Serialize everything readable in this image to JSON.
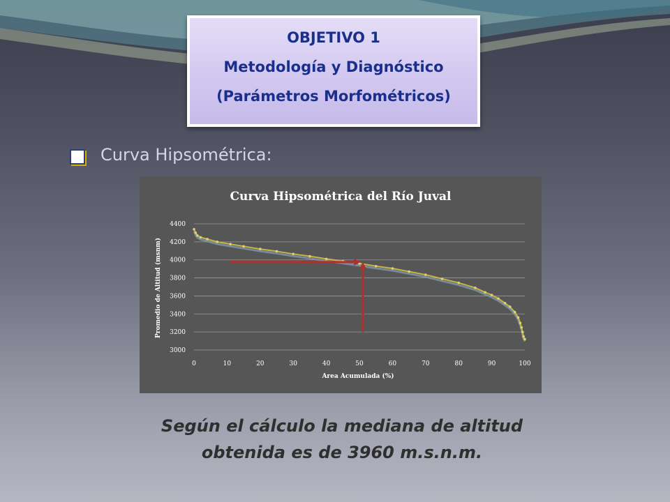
{
  "header": {
    "line1": "OBJETIVO 1",
    "line2": "Metodología y Diagnóstico",
    "line3": "(Parámetros Morfométricos)"
  },
  "bullet": {
    "text": "Curva Hipsométrica:"
  },
  "colors": {
    "title_text": "#1a2f8c",
    "curve": "#c8b44a",
    "arrow": "#b03030",
    "panel": "#565656"
  },
  "chart_data": {
    "type": "line",
    "title": "Curva Hipsométrica del Río Juval",
    "xlabel": "Area Acumulada  (%)",
    "ylabel": "Promedio  de Altitud  (msnm)",
    "xlim": [
      0,
      100
    ],
    "ylim": [
      3000,
      4400
    ],
    "xticks": [
      "0",
      "10",
      "20",
      "30",
      "40",
      "50",
      "60",
      "70",
      "80",
      "90",
      "100"
    ],
    "yticks": [
      "3000",
      "3200",
      "3400",
      "3600",
      "3800",
      "4000",
      "4200",
      "4400"
    ],
    "grid": true,
    "legend": "none",
    "series": [
      {
        "x": [
          0,
          0.5,
          1,
          2,
          4,
          7,
          11,
          15,
          20,
          25,
          30,
          35,
          40,
          45,
          50,
          55,
          60,
          65,
          70,
          75,
          80,
          85,
          88,
          90,
          92,
          94,
          95.5,
          97,
          98,
          98.6,
          99,
          99.3,
          99.6,
          100
        ],
        "y": [
          4340,
          4300,
          4270,
          4250,
          4230,
          4200,
          4175,
          4150,
          4120,
          4095,
          4065,
          4040,
          4010,
          3985,
          3960,
          3930,
          3905,
          3870,
          3835,
          3790,
          3745,
          3690,
          3640,
          3610,
          3570,
          3520,
          3480,
          3420,
          3360,
          3300,
          3250,
          3200,
          3150,
          3120
        ]
      }
    ],
    "annotation": {
      "median_area_pct": 50,
      "median_altitude": 3960
    }
  },
  "conclusion": {
    "line1": "Según el cálculo la mediana de altitud",
    "line2": "obtenida es de 3960 m.s.n.m."
  }
}
